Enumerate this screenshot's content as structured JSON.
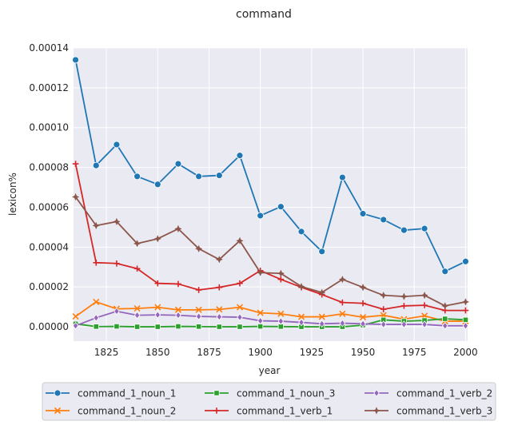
{
  "chart_data": {
    "type": "line",
    "title": "command",
    "xlabel": "year",
    "ylabel": "lexicon%",
    "xlim": [
      1809,
      2001
    ],
    "ylim": [
      -7.2e-06,
      0.00014
    ],
    "xticks": [
      1825,
      1850,
      1875,
      1900,
      1925,
      1950,
      1975,
      2000
    ],
    "xtick_labels": [
      "1825",
      "1850",
      "1875",
      "1900",
      "1925",
      "1950",
      "1975",
      "2000"
    ],
    "yticks": [
      0,
      2e-05,
      4e-05,
      6e-05,
      8e-05,
      0.0001,
      0.00012,
      0.00014
    ],
    "ytick_labels": [
      "0.00000",
      "0.00002",
      "0.00004",
      "0.00006",
      "0.00008",
      "0.00010",
      "0.00012",
      "0.00014"
    ],
    "grid": true,
    "legend_position": "bottom",
    "x": [
      1810,
      1820,
      1830,
      1840,
      1850,
      1860,
      1870,
      1880,
      1890,
      1900,
      1910,
      1920,
      1930,
      1940,
      1950,
      1960,
      1970,
      1980,
      1990,
      2000
    ],
    "series": [
      {
        "name": "command_1_noun_1",
        "color": "#1f77b4",
        "marker": "circle",
        "values": [
          0.000134,
          8.1e-05,
          9.15e-05,
          7.55e-05,
          7.15e-05,
          8.18e-05,
          7.55e-05,
          7.6e-05,
          8.6e-05,
          5.58e-05,
          6.03e-05,
          4.78e-05,
          3.78e-05,
          7.5e-05,
          5.68e-05,
          5.38e-05,
          4.85e-05,
          4.93e-05,
          2.78e-05,
          3.28e-05
        ]
      },
      {
        "name": "command_1_noun_2",
        "color": "#ff7f0e",
        "marker": "x",
        "values": [
          5.2e-06,
          1.25e-05,
          9e-06,
          9.2e-06,
          9.8e-06,
          8.5e-06,
          8.5e-06,
          8.7e-06,
          9.8e-06,
          7e-06,
          6.5e-06,
          5e-06,
          5e-06,
          6.5e-06,
          4.8e-06,
          5.8e-06,
          3.8e-06,
          5.5e-06,
          2.8e-06,
          2.8e-06
        ]
      },
      {
        "name": "command_1_noun_3",
        "color": "#2ca02c",
        "marker": "square",
        "values": [
          1.5e-06,
          1e-07,
          2e-07,
          0,
          0,
          2e-07,
          1e-07,
          0,
          0,
          2e-07,
          1e-07,
          0,
          0,
          0,
          8e-07,
          3.5e-06,
          2.8e-06,
          3.2e-06,
          4e-06,
          3.5e-06
        ]
      },
      {
        "name": "command_1_verb_1",
        "color": "#d62728",
        "marker": "plus",
        "values": [
          8.18e-05,
          3.22e-05,
          3.18e-05,
          2.92e-05,
          2.18e-05,
          2.15e-05,
          1.85e-05,
          1.98e-05,
          2.18e-05,
          2.82e-05,
          2.38e-05,
          1.98e-05,
          1.62e-05,
          1.22e-05,
          1.18e-05,
          8.8e-06,
          1.05e-05,
          1.08e-05,
          8.2e-06,
          8.2e-06
        ]
      },
      {
        "name": "command_1_verb_2",
        "color": "#9467bd",
        "marker": "diamond",
        "values": [
          5e-07,
          4.5e-06,
          7.8e-06,
          5.8e-06,
          6e-06,
          5.8e-06,
          5.2e-06,
          5e-06,
          4.8e-06,
          3e-06,
          2.8e-06,
          2.2e-06,
          1.5e-06,
          1.8e-06,
          1.5e-06,
          1.2e-06,
          1.2e-06,
          1.2e-06,
          5e-07,
          5e-07
        ]
      },
      {
        "name": "command_1_verb_3",
        "color": "#8c564b",
        "marker": "star",
        "values": [
          6.52e-05,
          5.08e-05,
          5.28e-05,
          4.18e-05,
          4.42e-05,
          4.92e-05,
          3.92e-05,
          3.38e-05,
          4.32e-05,
          2.72e-05,
          2.68e-05,
          2.02e-05,
          1.72e-05,
          2.38e-05,
          1.98e-05,
          1.58e-05,
          1.52e-05,
          1.58e-05,
          1.05e-05,
          1.25e-05
        ]
      }
    ]
  }
}
